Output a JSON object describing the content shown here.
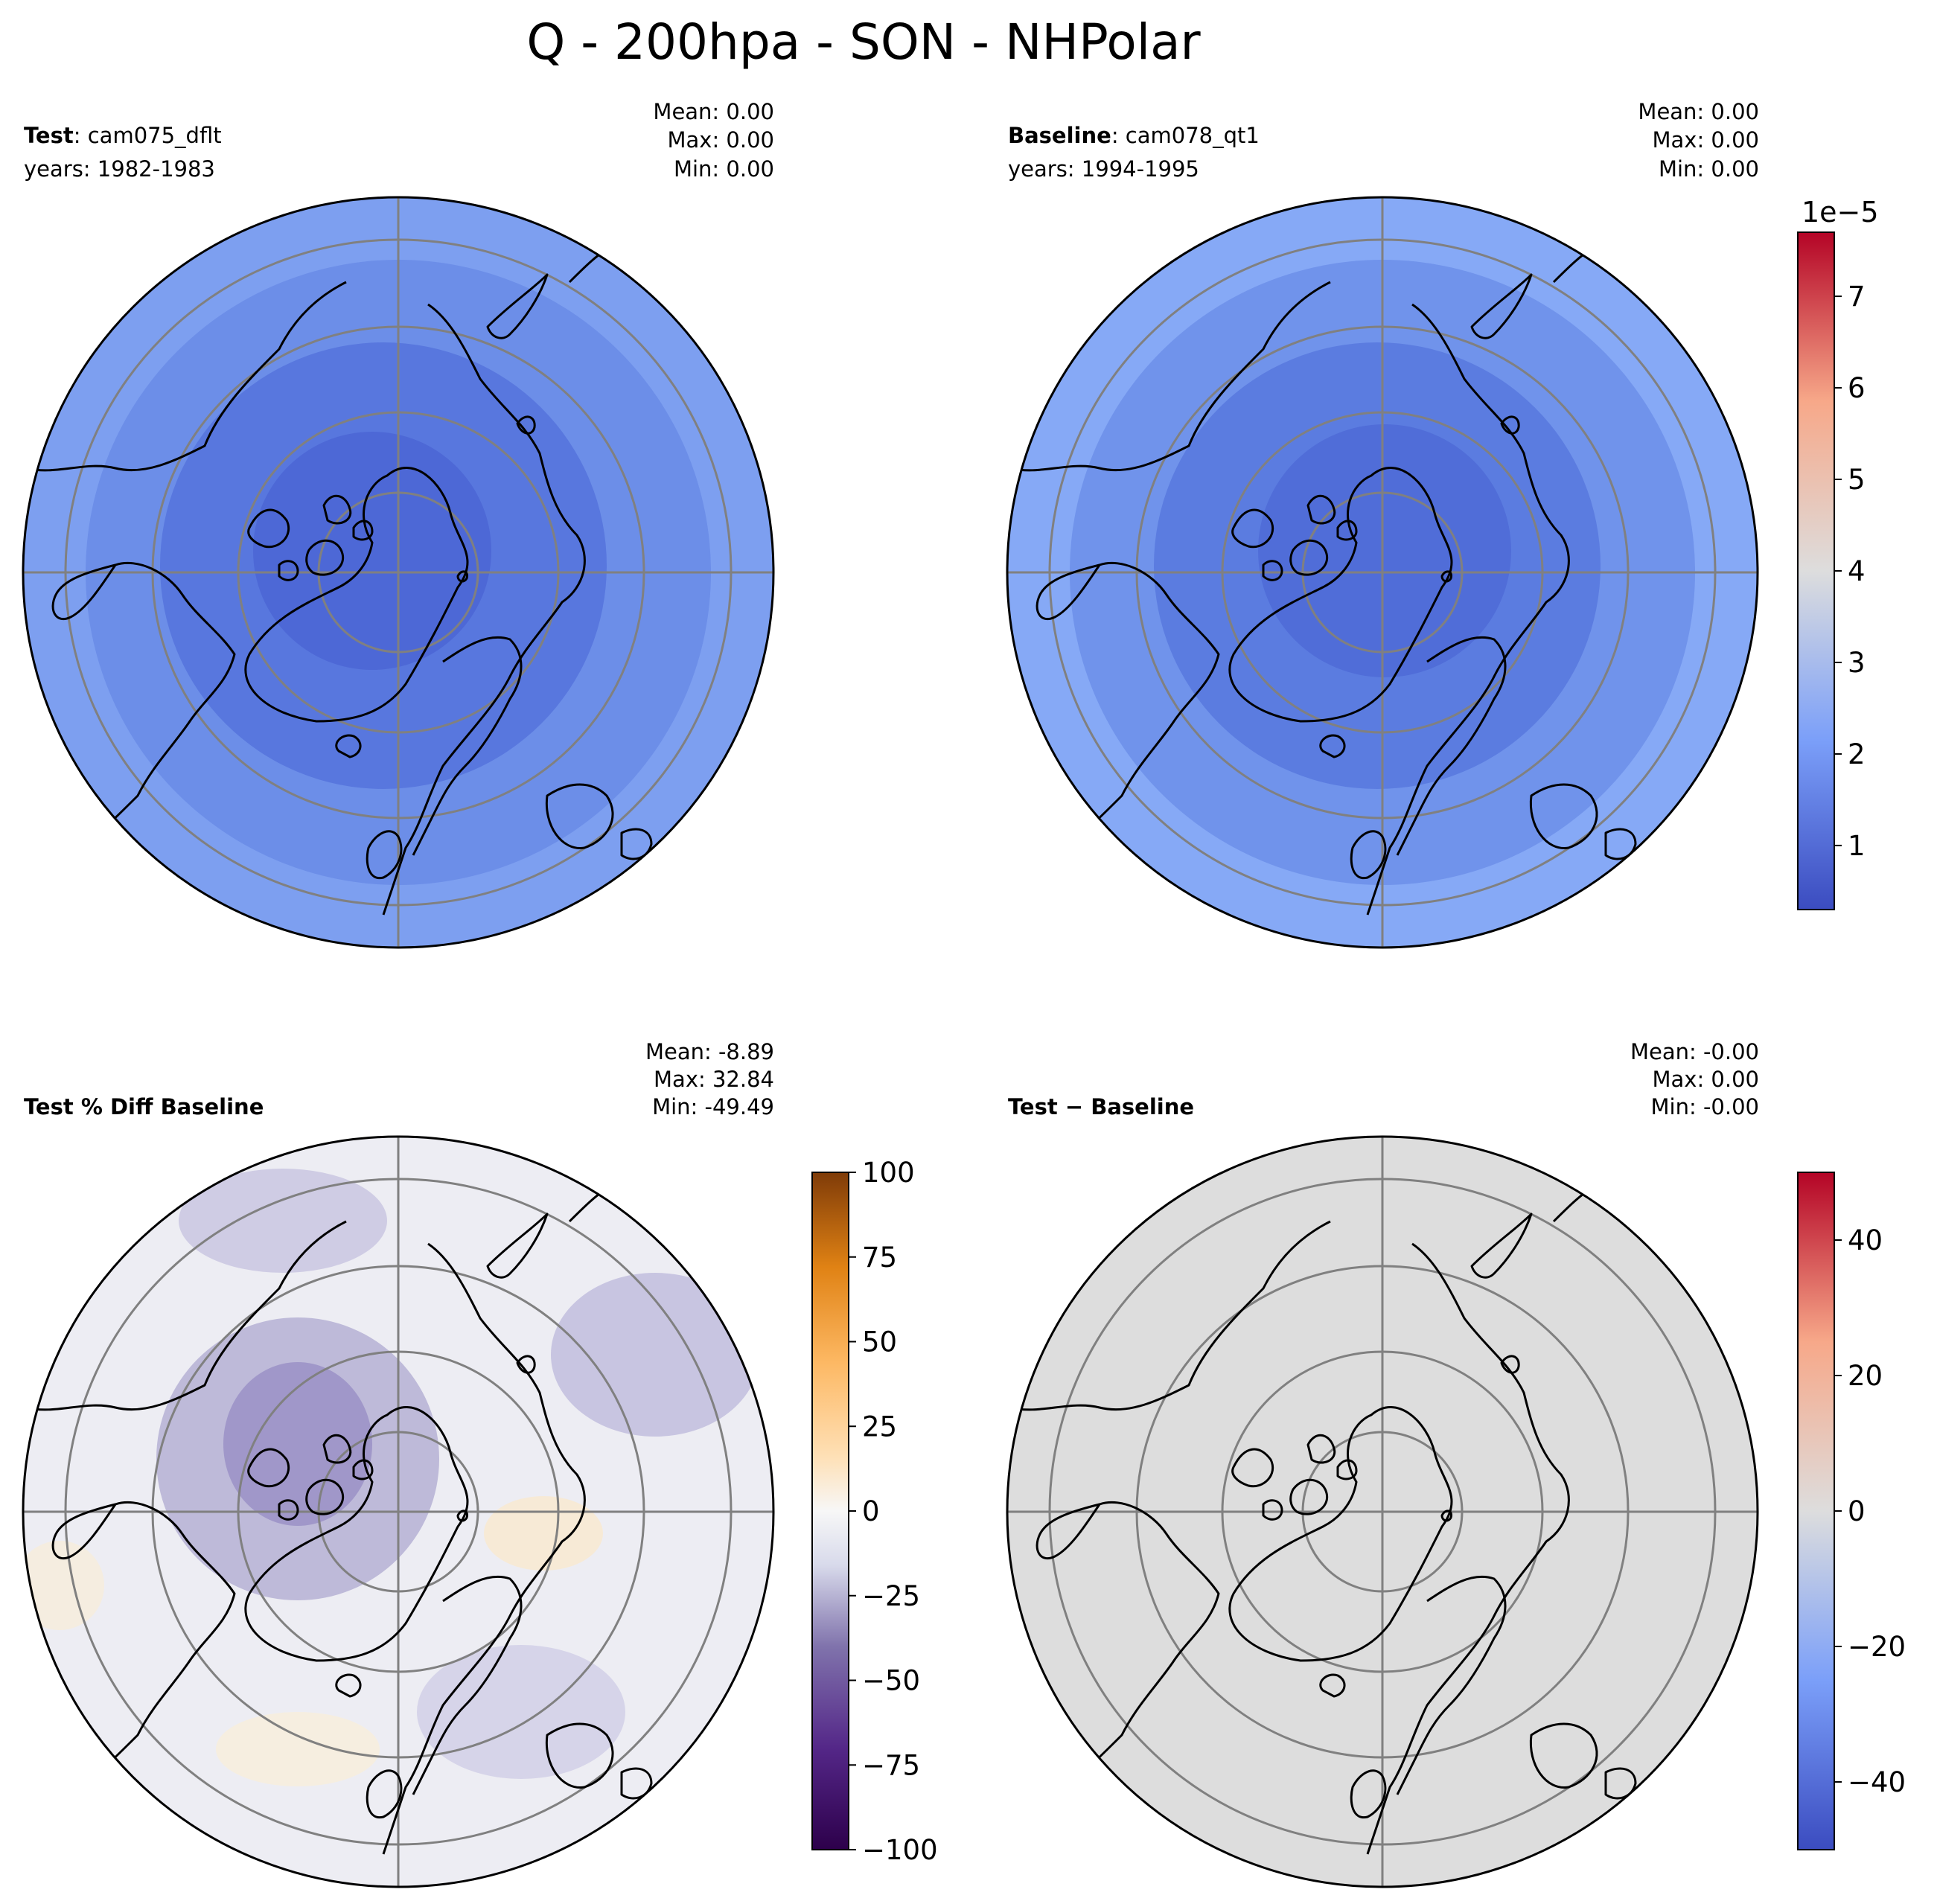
{
  "title": "Q - 200hpa - SON - NHPolar",
  "panels": [
    {
      "label_bold": "Test",
      "label_rest": ": cam075_dflt",
      "years": "years: 1982-1983",
      "stats": [
        "Mean:  0.00",
        "Max:  0.00",
        "Min:  0.00"
      ],
      "field": "test"
    },
    {
      "label_bold": "Baseline",
      "label_rest": ": cam078_qt1",
      "years": "years: 1994-1995",
      "stats": [
        "Mean:  0.00",
        "Max:  0.00",
        "Min:  0.00"
      ],
      "field": "baseline"
    },
    {
      "label_bold": "Test % Diff Baseline",
      "label_rest": "",
      "years": "",
      "stats": [
        "Mean: -8.89",
        "Max: 32.84",
        "Min: -49.49"
      ],
      "field": "pctdiff"
    },
    {
      "label_bold": "Test − Baseline",
      "label_rest": "",
      "years": "",
      "stats": [
        "Mean: -0.00",
        "Max:  0.00",
        "Min: -0.00"
      ],
      "field": "diff"
    }
  ],
  "colorbars": [
    {
      "colormap": "coolwarm",
      "offset_text": "1e−5",
      "range": [
        0.3,
        7.7
      ],
      "ticks": [
        1,
        2,
        3,
        4,
        5,
        6,
        7
      ],
      "tick_labels": [
        "1",
        "2",
        "3",
        "4",
        "5",
        "6",
        "7"
      ]
    },
    {
      "colormap": "PuOr_r",
      "range": [
        -100,
        100
      ],
      "ticks": [
        -100,
        -75,
        -50,
        -25,
        0,
        25,
        50,
        75,
        100
      ],
      "tick_labels": [
        "−100",
        "−75",
        "−50",
        "−25",
        "0",
        "25",
        "50",
        "75",
        "100"
      ]
    },
    {
      "colormap": "coolwarm",
      "range": [
        -50,
        50
      ],
      "ticks": [
        -40,
        -20,
        0,
        20,
        40
      ],
      "tick_labels": [
        "−40",
        "−20",
        "0",
        "20",
        "40"
      ]
    }
  ],
  "map": {
    "projection": "North Polar Stereographic",
    "latitude_circles": [
      80,
      70,
      60,
      50
    ],
    "meridians_deg": [
      0,
      90,
      180,
      270
    ],
    "colors": {
      "gridline": "#808080",
      "coastline": "#000000",
      "diff_fill": "#dddddd"
    }
  }
}
